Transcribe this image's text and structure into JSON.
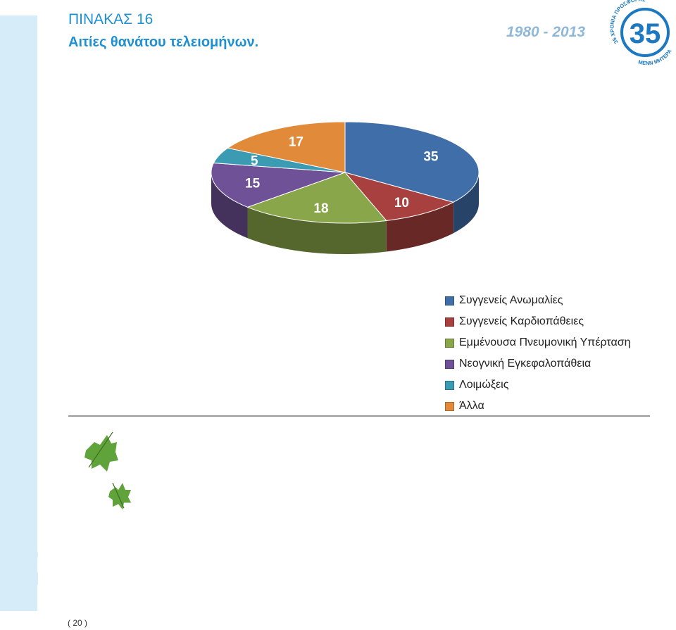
{
  "header": {
    "title": "ΠΙΝΑΚΑΣ 16",
    "subtitle": "Αιτίες θανάτου τελειομήνων.",
    "years": "1980 - 2013"
  },
  "logo": {
    "number": "35",
    "arc_top": "35 ΧΡΟΝΙΑ ΠΡΟΣΦΟΡΑΣ",
    "arc_bottom": "ΜΕΝΝ ΜΗΤΕΡΑ",
    "color": "#1b78c2"
  },
  "chart_data": {
    "type": "pie",
    "title": "",
    "slices": [
      {
        "label": "Συγγενείς Ανωμαλίες",
        "value": 35,
        "color": "#3f6ea8"
      },
      {
        "label": "Συγγενείς Καρδιοπάθειες",
        "value": 10,
        "color": "#a7403e"
      },
      {
        "label": "Εμμένουσα Πνευμονική Υπέρταση",
        "value": 18,
        "color": "#8aa64a"
      },
      {
        "label": "Νεογνική Εγκεφαλοπάθεια",
        "value": 15,
        "color": "#6e5196"
      },
      {
        "label": "Λοιμώξεις",
        "value": 5,
        "color": "#3a9bb3"
      },
      {
        "label": "Άλλα",
        "value": 17,
        "color": "#e08a3a"
      }
    ],
    "legend_position": "bottom-right",
    "style": "3d"
  },
  "footer": {
    "page_number": "( 20 )"
  }
}
